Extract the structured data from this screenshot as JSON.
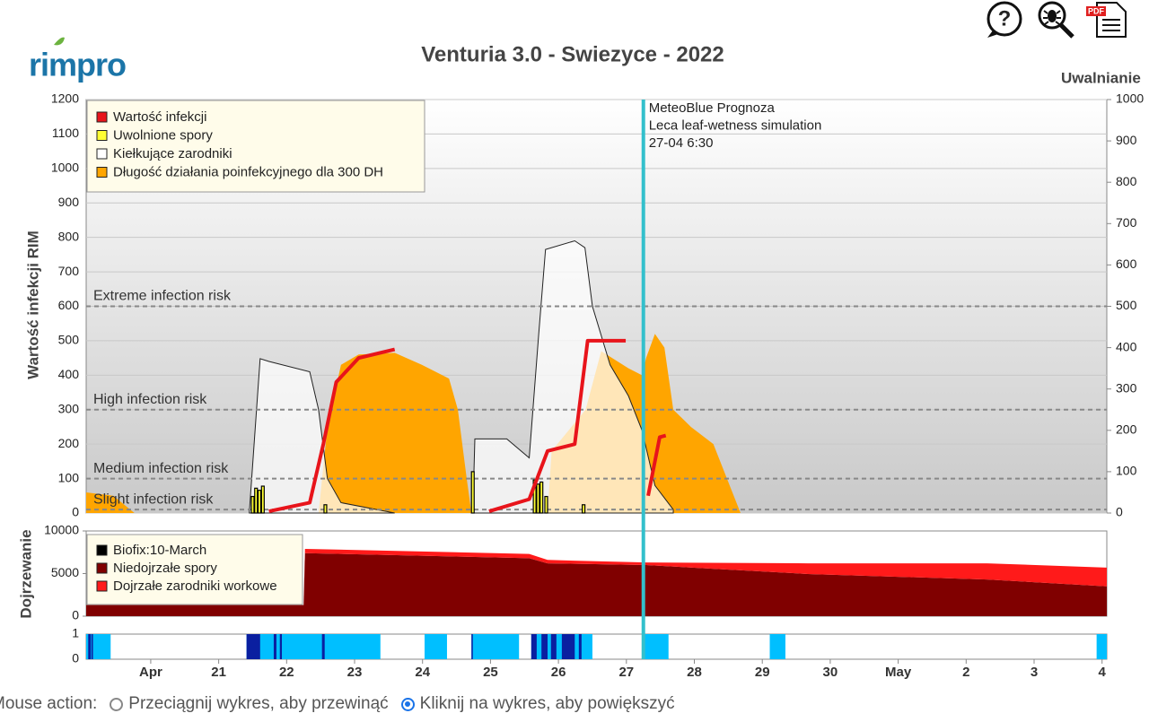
{
  "header": {
    "logo": "rimpro",
    "help_label": "?",
    "pdf_label": "PDF"
  },
  "chart_data": [
    {
      "type": "area",
      "title": "Venturia 3.0 - Swiezyce - 2022",
      "y_label": "Wartość infekcji RIM",
      "y2_label": "Uwalnianie",
      "xlim": [
        19.05,
        34.07
      ],
      "ylim": [
        0,
        1200
      ],
      "yticks": [
        0,
        100,
        200,
        300,
        400,
        500,
        600,
        700,
        800,
        900,
        1000,
        1100,
        1200
      ],
      "y2lim": [
        0,
        1000
      ],
      "y2ticks": [
        0,
        100,
        200,
        300,
        400,
        500,
        600,
        700,
        800,
        900,
        1000
      ],
      "grid": true,
      "series": [
        {
          "name": "Wartość infekcji",
          "color": "#e8141b",
          "kind": "line",
          "x": [
            21.74,
            22.34,
            22.54,
            22.73,
            23.06,
            23.59,
            null,
            24.98,
            25.57,
            25.84,
            26.24,
            26.43,
            26.99,
            null,
            27.32,
            27.49,
            27.58
          ],
          "values": [
            5,
            30,
            200,
            380,
            450,
            475,
            null,
            5,
            40,
            180,
            200,
            500,
            500,
            null,
            50,
            220,
            225
          ]
        },
        {
          "name": "Uwolnione spory",
          "color": "#ffff33",
          "kind": "bar",
          "axis": "y2",
          "x": [
            21.5,
            21.55,
            21.6,
            21.65,
            22.57,
            24.74,
            25.65,
            25.7,
            25.75,
            25.82,
            26.37
          ],
          "values": [
            40,
            60,
            55,
            65,
            20,
            100,
            80,
            70,
            75,
            40,
            20
          ]
        },
        {
          "name": "Kiełkujące zarodniki",
          "color": "#ffffff",
          "kind": "area",
          "x": [
            21.45,
            21.61,
            21.74,
            22.34,
            22.47,
            22.6,
            22.8,
            23.59,
            null,
            24.74,
            24.77,
            25.24,
            25.57,
            25.71,
            25.81,
            26.24,
            26.39,
            26.5,
            26.76,
            27.03,
            27.23,
            27.42,
            27.69
          ],
          "values": [
            0,
            448,
            440,
            410,
            300,
            100,
            30,
            0,
            null,
            0,
            215,
            215,
            160,
            520,
            765,
            790,
            770,
            600,
            430,
            340,
            240,
            80,
            10
          ]
        },
        {
          "name": "Długość działania poinfekcyjnego dla 300 DH",
          "color": "#ffa500",
          "kind": "area",
          "x": [
            19.05,
            19.45,
            19.76,
            null,
            22.47,
            22.6,
            22.8,
            23.06,
            23.59,
            23.99,
            24.39,
            24.52,
            24.65,
            24.72,
            null,
            25.84,
            25.9,
            26.4,
            26.63,
            27.03,
            27.23,
            27.29,
            27.42,
            27.56,
            27.69,
            27.95,
            28.28,
            28.48,
            28.68
          ],
          "values": [
            60,
            50,
            0,
            null,
            0,
            250,
            430,
            460,
            465,
            430,
            390,
            300,
            100,
            0,
            null,
            0,
            180,
            300,
            470,
            420,
            400,
            450,
            520,
            480,
            300,
            250,
            200,
            100,
            0
          ]
        }
      ],
      "thresholds": [
        {
          "value": 600,
          "label": "Extreme infection risk"
        },
        {
          "value": 300,
          "label": "High infection risk"
        },
        {
          "value": 100,
          "label": "Medium infection risk"
        },
        {
          "value": 10,
          "label": "Slight infection risk"
        }
      ],
      "marker": {
        "x": 27.25,
        "color": "#33c0cc",
        "lines": [
          "MeteoBlue Prognoza",
          "Leca leaf-wetness simulation",
          "27-04 6:30"
        ]
      }
    },
    {
      "type": "stacked-area",
      "y_label": "Dojrzewanie",
      "xlim": [
        19.05,
        34.07
      ],
      "ylim": [
        0,
        10000
      ],
      "yticks": [
        0,
        5000,
        10000
      ],
      "biofix": {
        "label": "Biofix:10-March",
        "color": "#000000"
      },
      "x": [
        19.05,
        22.25,
        22.27,
        25.57,
        25.84,
        27.29,
        29.67,
        32.31,
        34.07
      ],
      "series": [
        {
          "name": "Niedojrzałe spory",
          "color": "#800000",
          "values": [
            1300,
            1300,
            7400,
            6800,
            6200,
            6000,
            4950,
            4300,
            3500
          ]
        },
        {
          "name": "Dojrzałe zarodniki workowe",
          "color": "#ff1a1a",
          "values": [
            0,
            0,
            500,
            500,
            400,
            300,
            1250,
            1900,
            2200
          ]
        }
      ]
    },
    {
      "type": "strip",
      "xlim": [
        19.05,
        34.07
      ],
      "ylim": [
        0,
        1
      ],
      "yticks": [
        0,
        1
      ],
      "wet_color": "#00bfff",
      "dense_color": "#0a1fa0",
      "wet_periods": [
        [
          19.05,
          19.41
        ],
        [
          21.41,
          23.38
        ],
        [
          24.03,
          24.36
        ],
        [
          24.72,
          25.42
        ],
        [
          25.6,
          26.5
        ],
        [
          27.25,
          27.62
        ],
        [
          29.11,
          29.34
        ],
        [
          33.92,
          34.07
        ]
      ],
      "dense_periods": [
        [
          19.08,
          19.12
        ],
        [
          19.13,
          19.15
        ],
        [
          21.41,
          21.61
        ],
        [
          21.81,
          21.85
        ],
        [
          21.9,
          21.93
        ],
        [
          22.52,
          22.56
        ],
        [
          24.72,
          24.74
        ],
        [
          25.6,
          25.68
        ],
        [
          25.75,
          25.84
        ],
        [
          25.89,
          25.97
        ],
        [
          26.05,
          26.24
        ],
        [
          26.3,
          26.34
        ]
      ],
      "xticks": [
        {
          "value": 20,
          "label": "Apr"
        },
        21,
        22,
        23,
        24,
        25,
        26,
        27,
        28,
        29,
        30,
        {
          "value": 31,
          "label": "May"
        },
        {
          "value": 32,
          "label": "2"
        },
        {
          "value": 33,
          "label": "3"
        },
        {
          "value": 34,
          "label": "4"
        }
      ]
    }
  ],
  "mouse_action": {
    "label": "Mouse action:",
    "options": [
      {
        "label": "Przeciągnij wykres, aby przewinąć",
        "selected": false
      },
      {
        "label": "Kliknij na wykres, aby powiększyć",
        "selected": true
      }
    ]
  }
}
